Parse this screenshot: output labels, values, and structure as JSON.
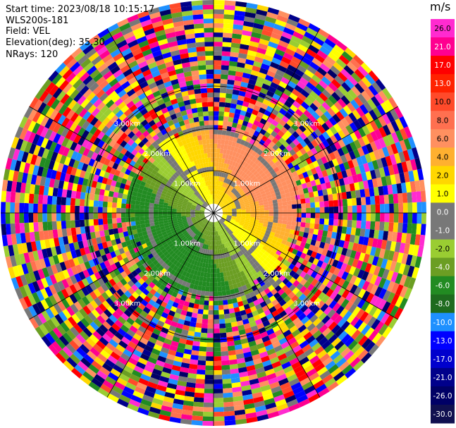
{
  "header": {
    "start_time": "Start time: 2023/08/18 10:15:17",
    "instrument": "WLS200s-181",
    "field": "Field: VEL",
    "elevation": "Elevation(deg): 35.30",
    "nrays": "NRays: 120"
  },
  "colorbar": {
    "unit": "m/s",
    "labels": [
      "26.0",
      "21.0",
      "17.0",
      "13.0",
      "10.0",
      "8.0",
      "6.0",
      "4.0",
      "2.0",
      "1.0",
      "0.0",
      "-1.0",
      "-2.0",
      "-4.0",
      "-6.0",
      "-8.0",
      "-10.0",
      "-13.0",
      "-17.0",
      "-21.0",
      "-26.0",
      "-30.0"
    ],
    "colors": [
      "#ff2bd0",
      "#ff0090",
      "#ff0000",
      "#ff2200",
      "#ff4a2a",
      "#ff7050",
      "#ff9060",
      "#ffb030",
      "#ffd700",
      "#ffff00",
      "#787878",
      "#787878",
      "#9acd32",
      "#6b9e23",
      "#228b22",
      "#1e6b1e",
      "#1e90ff",
      "#0000ff",
      "#0000cd",
      "#00008b",
      "#000066",
      "#101050"
    ]
  },
  "chart_data": {
    "type": "heatmap",
    "title": "",
    "projection": "polar PPI",
    "field": "VEL",
    "units": "m/s",
    "nrays": 120,
    "elevation_deg": 35.3,
    "range_ring_labels_km": [
      "1.00km",
      "2.00km",
      "3.00km"
    ],
    "range_max_km": 3.4,
    "color_scale_bounds_ms": [
      -30.0,
      26.0
    ],
    "grid": true
  }
}
